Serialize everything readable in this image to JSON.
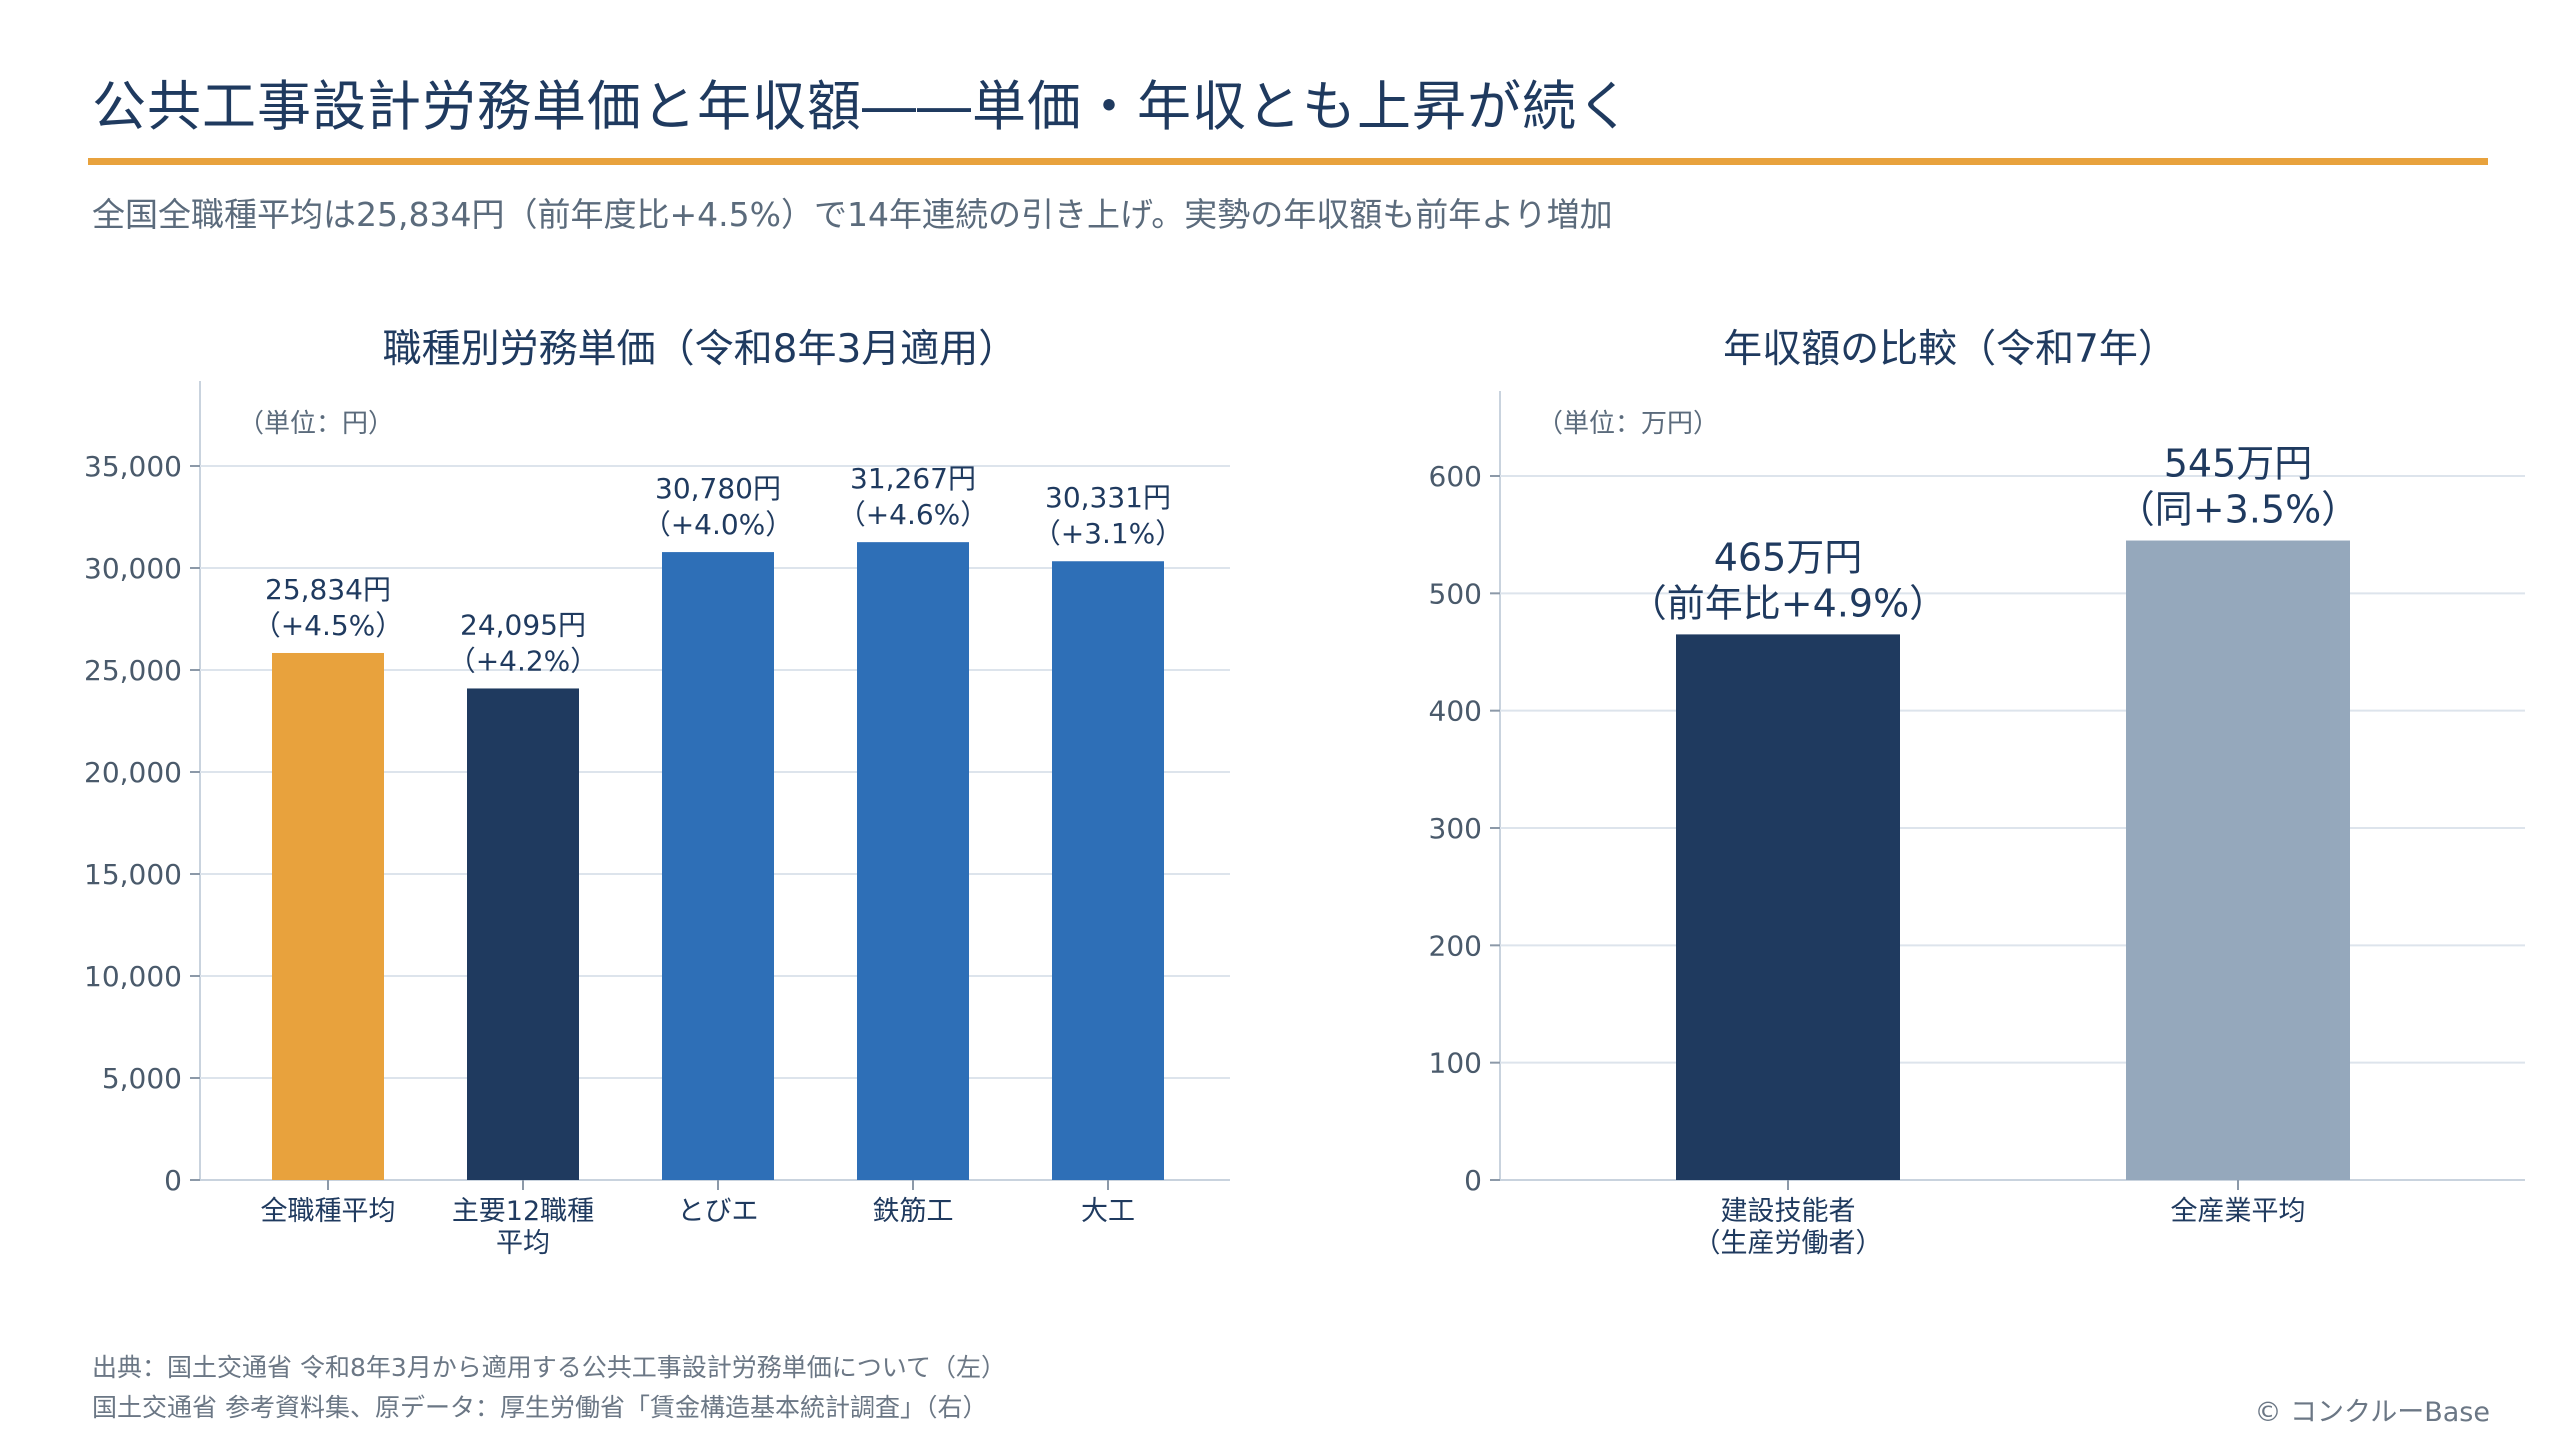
{
  "header": {
    "title": "公共工事設計労務単価と年収額――単価・年収とも上昇が続く",
    "subtitle": "全国全職種平均は25,834円（前年度比+4.5%）で14年連続の引き上げ。実勢の年収額も前年より増加"
  },
  "footer": {
    "source_line1": "出典：国土交通省 令和8年3月から適用する公共工事設計労務単価について（左）",
    "source_line2": "国土交通省 参考資料集、原データ：厚生労働省「賃金構造基本統計調査」（右）",
    "copyright": "© コンクルーBase"
  },
  "chart_data": [
    {
      "type": "bar",
      "title": "職種別労務単価（令和8年3月適用）",
      "unit_label": "（単位：円）",
      "categories": [
        "全職種平均",
        "主要12職種\n平均",
        "とびエ",
        "鉄筋工",
        "大工"
      ],
      "values": [
        25834,
        24095,
        30780,
        31267,
        30331
      ],
      "value_labels": [
        [
          "25,834円",
          "（+4.5%）"
        ],
        [
          "24,095円",
          "（+4.2%）"
        ],
        [
          "30,780円",
          "（+4.0%）"
        ],
        [
          "31,267円",
          "（+4.6%）"
        ],
        [
          "30,331円",
          "（+3.1%）"
        ]
      ],
      "colors": [
        "#e8a23d",
        "#1f3a5f",
        "#2e6fb7",
        "#2e6fb7",
        "#2e6fb7"
      ],
      "ylim": [
        0,
        35000
      ],
      "yticks": [
        0,
        5000,
        10000,
        15000,
        20000,
        25000,
        30000,
        35000
      ],
      "ytick_labels": [
        "0",
        "5,000",
        "10,000",
        "15,000",
        "20,000",
        "25,000",
        "30,000",
        "35,000"
      ],
      "grid": true
    },
    {
      "type": "bar",
      "title": "年収額の比較（令和7年）",
      "unit_label": "（単位：万円）",
      "categories": [
        "建設技能者\n（生産労働者）",
        "全産業平均"
      ],
      "values": [
        465,
        545
      ],
      "value_labels": [
        [
          "465万円",
          "（前年比+4.9%）"
        ],
        [
          "545万円",
          "（同+3.5%）"
        ]
      ],
      "colors": [
        "#1f3a5f",
        "#95a8bc"
      ],
      "ylim": [
        0,
        600
      ],
      "yticks": [
        0,
        100,
        200,
        300,
        400,
        500,
        600
      ],
      "ytick_labels": [
        "0",
        "100",
        "200",
        "300",
        "400",
        "500",
        "600"
      ],
      "grid": true
    }
  ]
}
